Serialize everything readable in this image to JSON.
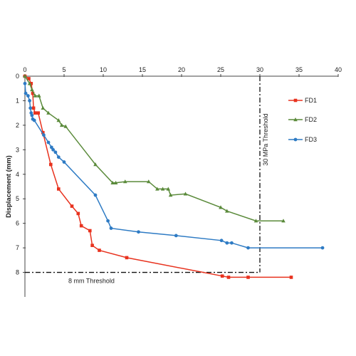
{
  "chart_data": {
    "type": "line",
    "ylabel": "Displacement (mm)",
    "xlabel": "",
    "xlim": [
      0,
      40
    ],
    "ylim": [
      0,
      9
    ],
    "x_ticks": [
      "0",
      "5",
      "10",
      "15",
      "20",
      "25",
      "30",
      "35",
      "40"
    ],
    "y_ticks": [
      "0",
      "1",
      "2",
      "3",
      "4",
      "5",
      "6",
      "7",
      "8"
    ],
    "x_axis_position": "top",
    "y_axis_inverted": true,
    "grid": false,
    "legend_position": "right",
    "annotations": {
      "vertical_threshold": {
        "x": 30,
        "label": "30 MPa Threshold"
      },
      "horizontal_threshold": {
        "y": 8,
        "label": "8 mm Threshold"
      }
    },
    "series": [
      {
        "name": "FD1",
        "color": "#e8321e",
        "marker": "square",
        "points": [
          [
            0,
            0
          ],
          [
            0.5,
            0.1
          ],
          [
            0.8,
            0.3
          ],
          [
            1.0,
            0.7
          ],
          [
            1.1,
            1.3
          ],
          [
            1.3,
            1.5
          ],
          [
            1.7,
            1.5
          ],
          [
            2.3,
            2.3
          ],
          [
            3.3,
            3.6
          ],
          [
            4.3,
            4.6
          ],
          [
            6.0,
            5.3
          ],
          [
            6.8,
            5.6
          ],
          [
            7.2,
            6.1
          ],
          [
            8.3,
            6.3
          ],
          [
            8.6,
            6.9
          ],
          [
            9.5,
            7.1
          ],
          [
            13.0,
            7.4
          ],
          [
            25.2,
            8.15
          ],
          [
            26.0,
            8.2
          ],
          [
            28.5,
            8.2
          ],
          [
            34.0,
            8.2
          ]
        ]
      },
      {
        "name": "FD2",
        "color": "#5a8a3a",
        "marker": "triangle",
        "points": [
          [
            0,
            0
          ],
          [
            0.6,
            0.3
          ],
          [
            0.9,
            0.55
          ],
          [
            1.3,
            0.8
          ],
          [
            1.8,
            0.8
          ],
          [
            2.3,
            1.3
          ],
          [
            3.0,
            1.5
          ],
          [
            4.3,
            1.8
          ],
          [
            4.7,
            2.0
          ],
          [
            5.2,
            2.05
          ],
          [
            9.0,
            3.6
          ],
          [
            11.2,
            4.35
          ],
          [
            11.6,
            4.35
          ],
          [
            12.8,
            4.3
          ],
          [
            15.8,
            4.3
          ],
          [
            16.9,
            4.6
          ],
          [
            17.6,
            4.6
          ],
          [
            18.3,
            4.6
          ],
          [
            18.6,
            4.85
          ],
          [
            20.5,
            4.8
          ],
          [
            25.0,
            5.35
          ],
          [
            25.8,
            5.5
          ],
          [
            29.5,
            5.9
          ],
          [
            33.0,
            5.9
          ]
        ]
      },
      {
        "name": "FD3",
        "color": "#2e7bc4",
        "marker": "circle",
        "points": [
          [
            0,
            0.3
          ],
          [
            0.1,
            0.7
          ],
          [
            0.4,
            0.8
          ],
          [
            0.6,
            1.0
          ],
          [
            0.7,
            1.3
          ],
          [
            0.8,
            1.5
          ],
          [
            0.9,
            1.6
          ],
          [
            1.0,
            1.75
          ],
          [
            1.2,
            1.8
          ],
          [
            2.4,
            2.4
          ],
          [
            3.0,
            2.7
          ],
          [
            3.4,
            2.9
          ],
          [
            3.6,
            3.0
          ],
          [
            3.9,
            3.1
          ],
          [
            4.3,
            3.3
          ],
          [
            5.0,
            3.5
          ],
          [
            9.0,
            4.85
          ],
          [
            10.6,
            5.9
          ],
          [
            11.0,
            6.2
          ],
          [
            14.5,
            6.35
          ],
          [
            19.3,
            6.5
          ],
          [
            25.1,
            6.7
          ],
          [
            25.8,
            6.8
          ],
          [
            26.4,
            6.8
          ],
          [
            28.5,
            7.0
          ],
          [
            38.0,
            7.0
          ]
        ]
      }
    ]
  }
}
